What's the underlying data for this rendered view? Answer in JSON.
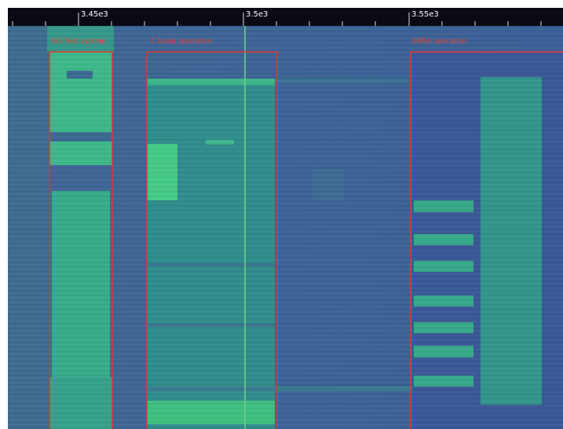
{
  "axis": {
    "ticks": [
      "3.45e3",
      "3.5e3",
      "3.55e3"
    ]
  },
  "annotations": [
    {
      "label": "ISS Test system"
    },
    {
      "label": "C-band operation"
    },
    {
      "label": "GBRA operation"
    }
  ]
}
